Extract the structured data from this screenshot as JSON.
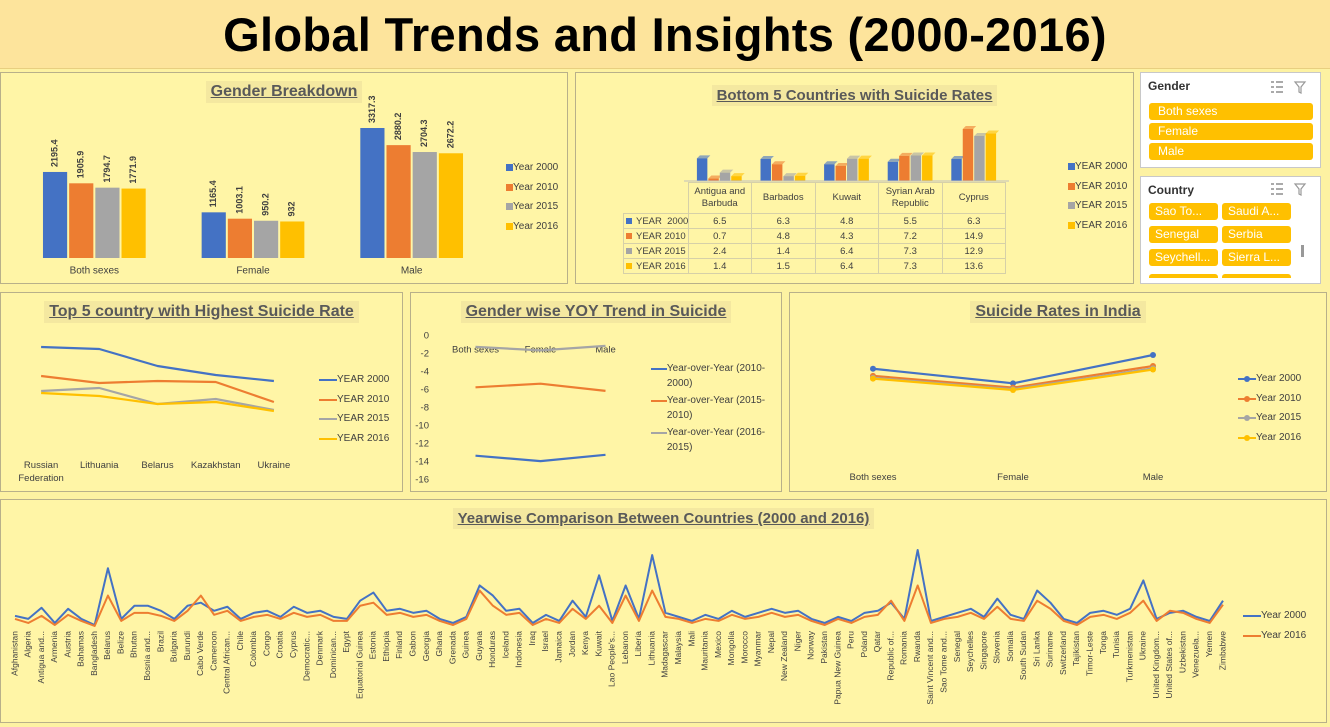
{
  "title": "Global Trends and Insights (2000-2016)",
  "chart_data": [
    {
      "type": "bar",
      "title": "Gender Breakdown",
      "data_labels": true,
      "legend": "right",
      "categories": [
        "Both sexes",
        "Female",
        "Male"
      ],
      "series": [
        {
          "name": "Year 2000",
          "color": "#4472c4",
          "values": [
            2195.4,
            1165.4,
            3317.3
          ]
        },
        {
          "name": "Year 2010",
          "color": "#ed7d31",
          "values": [
            1905.9,
            1003.1,
            2880.2
          ]
        },
        {
          "name": "Year 2015",
          "color": "#a5a5a5",
          "values": [
            1794.7,
            950.2,
            2704.3
          ]
        },
        {
          "name": "Year 2016",
          "color": "#ffc000",
          "values": [
            1771.9,
            932,
            2672.2
          ]
        }
      ]
    },
    {
      "type": "bar",
      "title": "Bottom 5 Countries with Suicide Rates",
      "data_table": true,
      "legend": "right",
      "categories": [
        "Antigua and Barbuda",
        "Barbados",
        "Kuwait",
        "Syrian Arab Republic",
        "Cyprus"
      ],
      "series": [
        {
          "name": "YEAR  2000",
          "color": "#4472c4",
          "values": [
            6.5,
            6.3,
            4.8,
            5.5,
            6.3
          ]
        },
        {
          "name": "YEAR 2010",
          "color": "#ed7d31",
          "values": [
            0.7,
            4.8,
            4.3,
            7.2,
            14.9
          ]
        },
        {
          "name": "YEAR 2015",
          "color": "#a5a5a5",
          "values": [
            2.4,
            1.4,
            6.4,
            7.3,
            12.9
          ]
        },
        {
          "name": "YEAR 2016",
          "color": "#ffc000",
          "values": [
            1.4,
            1.5,
            6.4,
            7.3,
            13.6
          ]
        }
      ]
    },
    {
      "type": "line",
      "title": "Top 5 country with Highest Suicide Rate",
      "legend": "right",
      "categories": [
        "Russian Federation",
        "Lithuania",
        "Belarus",
        "Kazakhstan",
        "Ukraine"
      ],
      "series": [
        {
          "name": "YEAR 2000",
          "color": "#4472c4",
          "values": [
            74,
            72,
            55,
            46,
            40
          ]
        },
        {
          "name": "YEAR 2010",
          "color": "#ed7d31",
          "values": [
            45,
            38,
            40,
            39,
            19
          ]
        },
        {
          "name": "YEAR 2015",
          "color": "#a5a5a5",
          "values": [
            30,
            33,
            17,
            22,
            11
          ]
        },
        {
          "name": "YEAR 2016",
          "color": "#ffc000",
          "values": [
            28,
            25,
            17,
            19,
            10
          ]
        }
      ]
    },
    {
      "type": "line",
      "title": "Gender wise YOY Trend in Suicide",
      "legend": "right",
      "categories": [
        "Both sexes",
        "Female",
        "Male"
      ],
      "ylim": [
        -16,
        0
      ],
      "yticks": [
        0,
        -2,
        -4,
        -6,
        -8,
        -10,
        -12,
        -14,
        -16
      ],
      "series": [
        {
          "name": "Year-over-Year (2010-2000)",
          "color": "#4472c4",
          "values": [
            -13.3,
            -13.9,
            -13.2
          ]
        },
        {
          "name": "Year-over-Year (2015-2010)",
          "color": "#ed7d31",
          "values": [
            -5.7,
            -5.3,
            -6.1
          ]
        },
        {
          "name": "Year-over-Year (2016-2015)",
          "color": "#a5a5a5",
          "values": [
            -1.2,
            -1.6,
            -1.1
          ]
        }
      ]
    },
    {
      "type": "line",
      "title": "Suicide Rates in India",
      "markers": true,
      "legend": "right",
      "categories": [
        "Both sexes",
        "Female",
        "Male"
      ],
      "series": [
        {
          "name": "Year 2000",
          "color": "#4472c4",
          "values": [
            17.8,
            14.1,
            21.3
          ]
        },
        {
          "name": "Year 2010",
          "color": "#ed7d31",
          "values": [
            16,
            13,
            18.5
          ]
        },
        {
          "name": "Year 2015",
          "color": "#a5a5a5",
          "values": [
            15.5,
            12.6,
            17.9
          ]
        },
        {
          "name": "Year 2016",
          "color": "#ffc000",
          "values": [
            15.3,
            12.4,
            17.6
          ]
        }
      ]
    },
    {
      "type": "line",
      "title": "Yearwise Comparison Between Countries (2000 and 2016)",
      "legend": "right",
      "categories": [
        "Afghanistan",
        "Algeria",
        "Antigua and...",
        "Armenia",
        "Austria",
        "Bahamas",
        "Bangladesh",
        "Belarus",
        "Belize",
        "Bhutan",
        "Bosnia and...",
        "Brazil",
        "Bulgaria",
        "Burundi",
        "Cabo Verde",
        "Cameroon",
        "Central African...",
        "Chile",
        "Colombia",
        "Congo",
        "Croatia",
        "Cyprus",
        "Democratic...",
        "Denmark",
        "Dominican...",
        "Egypt",
        "Equatorial Guinea",
        "Estonia",
        "Ethiopia",
        "Finland",
        "Gabon",
        "Georgia",
        "Ghana",
        "Grenada",
        "Guinea",
        "Guyana",
        "Honduras",
        "Iceland",
        "Indonesia",
        "Iraq",
        "Israel",
        "Jamaica",
        "Jordan",
        "Kenya",
        "Kuwait",
        "Lao People's...",
        "Lebanon",
        "Liberia",
        "Lithuania",
        "Madagascar",
        "Malaysia",
        "Mali",
        "Mauritania",
        "Mexico",
        "Mongolia",
        "Morocco",
        "Myanmar",
        "Nepal",
        "New Zealand",
        "Niger",
        "Norway",
        "Pakistan",
        "Papua New Guinea",
        "Peru",
        "Poland",
        "Qatar",
        "Republic of...",
        "Romania",
        "Rwanda",
        "Saint Vincent and...",
        "Sao Tome and...",
        "Senegal",
        "Seychelles",
        "Singapore",
        "Slovenia",
        "Somalia",
        "South Sudan",
        "Sri Lanka",
        "Suriname",
        "Switzerland",
        "Tajikistan",
        "Timor-Leste",
        "Tonga",
        "Tunisia",
        "Turkmenistan",
        "Ukraine",
        "United Kingdom...",
        "United States of...",
        "Uzbekistan",
        "Venezuela...",
        "Yemen",
        "Zimbabwe"
      ],
      "series": [
        {
          "name": "Year 2000",
          "color": "#4472c4",
          "values": [
            15,
            12,
            23,
            8,
            22,
            12,
            6,
            62,
            12,
            25,
            25,
            20,
            12,
            25,
            28,
            20,
            24,
            12,
            18,
            20,
            14,
            24,
            18,
            20,
            14,
            12,
            30,
            38,
            20,
            22,
            18,
            20,
            12,
            8,
            14,
            45,
            35,
            20,
            22,
            8,
            16,
            10,
            30,
            14,
            55,
            10,
            45,
            12,
            75,
            18,
            14,
            10,
            16,
            12,
            20,
            14,
            18,
            22,
            18,
            20,
            12,
            8,
            14,
            10,
            18,
            20,
            28,
            12,
            80,
            10,
            14,
            18,
            22,
            14,
            32,
            16,
            12,
            40,
            28,
            12,
            8,
            18,
            20,
            16,
            22,
            50,
            12,
            18,
            20,
            14,
            10,
            30
          ]
        },
        {
          "name": "Year 2016",
          "color": "#ed7d31",
          "values": [
            12,
            8,
            15,
            6,
            16,
            10,
            5,
            35,
            10,
            18,
            18,
            15,
            10,
            20,
            35,
            16,
            20,
            10,
            14,
            16,
            12,
            18,
            14,
            16,
            10,
            10,
            25,
            28,
            16,
            18,
            14,
            16,
            10,
            6,
            12,
            40,
            25,
            16,
            18,
            6,
            12,
            8,
            22,
            12,
            25,
            8,
            35,
            10,
            40,
            14,
            12,
            8,
            12,
            10,
            16,
            12,
            14,
            18,
            14,
            16,
            10,
            6,
            12,
            8,
            14,
            16,
            30,
            10,
            45,
            8,
            12,
            14,
            18,
            12,
            24,
            12,
            10,
            30,
            22,
            10,
            6,
            14,
            16,
            12,
            18,
            30,
            10,
            20,
            18,
            12,
            8,
            26
          ]
        }
      ]
    }
  ],
  "slicers": [
    {
      "title": "Gender",
      "items": [
        "Both sexes",
        "Female",
        "Male"
      ]
    },
    {
      "title": "Country",
      "items": [
        "Sao To...",
        "Saudi A...",
        "Senegal",
        "Serbia",
        "Seychell...",
        "Sierra L..."
      ]
    }
  ]
}
